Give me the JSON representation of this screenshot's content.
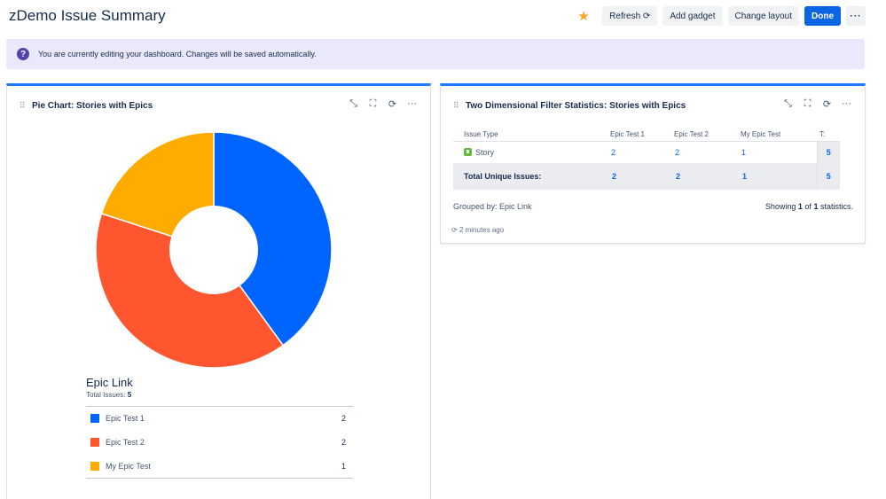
{
  "dashboard": {
    "title": "zDemo Issue Summary",
    "toolbar": {
      "refresh": "Refresh ⟳",
      "add_gadget": "Add gadget",
      "change_layout": "Change layout",
      "done": "Done",
      "more": "···"
    },
    "banner": "You are currently editing your dashboard. Changes will be saved automatically."
  },
  "pie_gadget": {
    "title": "Pie Chart: Stories with Epics",
    "legend_title": "Epic Link",
    "total_label": "Total Issues:",
    "total_value": "5"
  },
  "chart_data": {
    "type": "pie",
    "title": "Epic Link",
    "categories": [
      "Epic Test 1",
      "Epic Test 2",
      "My Epic Test"
    ],
    "values": [
      2,
      2,
      1
    ],
    "colors": [
      "#0065ff",
      "#ff5630",
      "#ffab00"
    ],
    "total": 5
  },
  "stats_gadget": {
    "title": "Two Dimensional Filter Statistics: Stories with Epics",
    "headers": [
      "Issue Type",
      "Epic Test 1",
      "Epic Test 2",
      "My Epic Test",
      "T:"
    ],
    "row": {
      "type": "Story",
      "values": [
        "2",
        "2",
        "1",
        "5"
      ]
    },
    "total_row": {
      "label": "Total Unique Issues:",
      "values": [
        "2",
        "2",
        "1",
        "5"
      ]
    },
    "grouped_by": "Grouped by: Epic Link",
    "showing_prefix": "Showing",
    "showing_current": "1",
    "showing_of": "of",
    "showing_total": "1",
    "showing_suffix": "statistics.",
    "updated": "2 minutes ago"
  },
  "colors": {
    "accent": "#0c66e4",
    "banner_bg": "#eae8fb",
    "star": "#f5a623"
  }
}
